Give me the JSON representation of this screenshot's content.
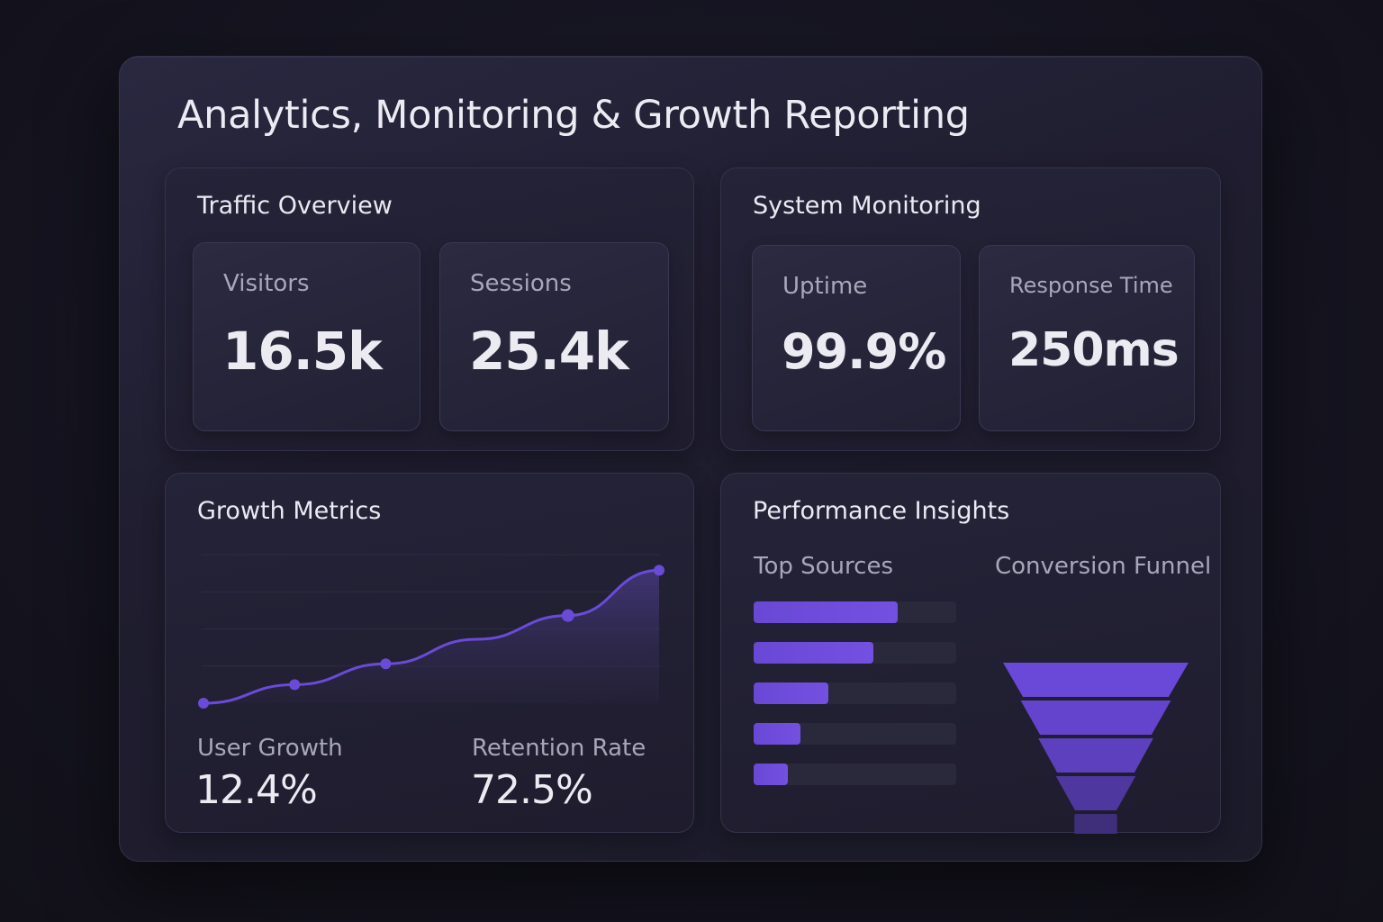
{
  "header": {
    "title": "Analytics, Monitoring & Growth Reporting"
  },
  "traffic": {
    "title": "Traffic Overview",
    "cards": [
      {
        "label": "Visitors",
        "value": "16.5k"
      },
      {
        "label": "Sessions",
        "value": "25.4k"
      }
    ]
  },
  "monitoring": {
    "title": "System Monitoring",
    "cards": [
      {
        "label": "Uptime",
        "value": "99.9%"
      },
      {
        "label": "Response Time",
        "value": "250ms"
      }
    ]
  },
  "growth": {
    "title": "Growth Metrics",
    "metrics": [
      {
        "label": "User Growth",
        "value": "12.4%"
      },
      {
        "label": "Retention Rate",
        "value": "72.5%"
      }
    ]
  },
  "insights": {
    "title": "Performance Insights",
    "sources_label": "Top Sources",
    "funnel_label": "Conversion Funnel",
    "source_fractions": [
      0.71,
      0.59,
      0.37,
      0.23,
      0.17
    ],
    "funnel_fractions": [
      1.0,
      0.81,
      0.62,
      0.43,
      0.23
    ]
  },
  "chart_data": {
    "type": "area",
    "title": "",
    "x": [
      0,
      1,
      2,
      3,
      4,
      5
    ],
    "values": [
      0,
      2.5,
      5.3,
      8.6,
      11.8,
      17.9
    ],
    "ylim": [
      0,
      20
    ],
    "grid": true,
    "xlabel": "",
    "ylabel": ""
  },
  "colors": {
    "accent": "#6a4bd8",
    "background": "#151420"
  }
}
